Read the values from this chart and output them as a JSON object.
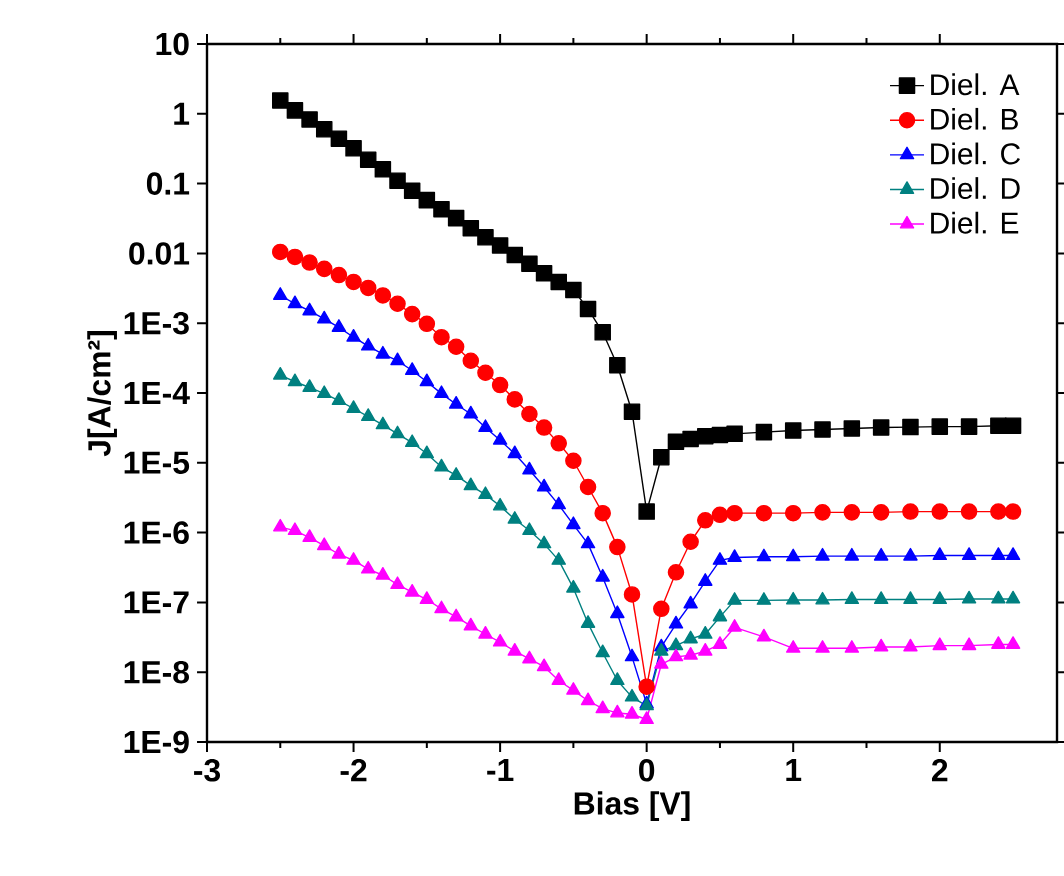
{
  "chart_data": {
    "type": "line",
    "xlabel": "Bias [V]",
    "ylabel": "J[A/cm²]",
    "x": [
      -2.5,
      -2.4,
      -2.3,
      -2.2,
      -2.1,
      -2.0,
      -1.9,
      -1.8,
      -1.7,
      -1.6,
      -1.5,
      -1.4,
      -1.3,
      -1.2,
      -1.1,
      -1.0,
      -0.9,
      -0.8,
      -0.7,
      -0.6,
      -0.5,
      -0.4,
      -0.3,
      -0.2,
      -0.1,
      0,
      0.1,
      0.2,
      0.3,
      0.4,
      0.5,
      0.6,
      0.8,
      1.0,
      1.2,
      1.4,
      1.6,
      1.8,
      2.0,
      2.2,
      2.4,
      2.5
    ],
    "series": [
      {
        "name": "Diel. A",
        "color": "#000000",
        "marker": "square",
        "values": [
          1.55,
          1.12,
          0.83,
          0.6,
          0.44,
          0.32,
          0.22,
          0.16,
          0.11,
          0.079,
          0.058,
          0.043,
          0.032,
          0.023,
          0.017,
          0.013,
          0.0095,
          0.0071,
          0.0052,
          0.0039,
          0.003,
          0.0016,
          0.00074,
          0.00025,
          5.4e-05,
          2e-06,
          1.2e-05,
          2e-05,
          2.2e-05,
          2.4e-05,
          2.5e-05,
          2.6e-05,
          2.75e-05,
          2.9e-05,
          3e-05,
          3.1e-05,
          3.2e-05,
          3.25e-05,
          3.3e-05,
          3.3e-05,
          3.4e-05,
          3.4e-05
        ]
      },
      {
        "name": "Diel. B",
        "color": "#ff0000",
        "marker": "circle",
        "values": [
          0.0105,
          0.0089,
          0.0074,
          0.006,
          0.0049,
          0.0039,
          0.0032,
          0.0025,
          0.0019,
          0.00135,
          0.00098,
          0.00063,
          0.00046,
          0.00029,
          0.000195,
          0.00013,
          8.1e-05,
          5e-05,
          3.2e-05,
          1.9e-05,
          1.07e-05,
          4.5e-06,
          1.9e-06,
          6.2e-07,
          1.3e-07,
          6.2e-09,
          8.1e-08,
          2.7e-07,
          7.4e-07,
          1.5e-06,
          1.8e-06,
          1.9e-06,
          1.9e-06,
          1.9e-06,
          1.95e-06,
          1.95e-06,
          1.95e-06,
          2e-06,
          2e-06,
          2e-06,
          2e-06,
          2e-06
        ]
      },
      {
        "name": "Diel. C",
        "color": "#0000ff",
        "marker": "triangle",
        "values": [
          0.0025,
          0.0019,
          0.0015,
          0.00115,
          0.00087,
          0.00063,
          0.00047,
          0.00036,
          0.00029,
          0.00021,
          0.000145,
          9.8e-05,
          6.9e-05,
          5e-05,
          3.2e-05,
          2.1e-05,
          1.35e-05,
          7.9e-06,
          4.5e-06,
          2.5e-06,
          1.3e-06,
          6.9e-07,
          2.3e-07,
          6.9e-08,
          1.66e-08,
          3.5e-09,
          2.3e-08,
          4.9e-08,
          9.5e-08,
          2e-07,
          4e-07,
          4.4e-07,
          4.5e-07,
          4.5e-07,
          4.6e-07,
          4.6e-07,
          4.6e-07,
          4.6e-07,
          4.7e-07,
          4.7e-07,
          4.7e-07,
          4.7e-07
        ]
      },
      {
        "name": "Diel. D",
        "color": "#008080",
        "marker": "triangle",
        "values": [
          0.00018,
          0.000145,
          0.00012,
          9.8e-05,
          7.8e-05,
          6e-05,
          4.6e-05,
          3.5e-05,
          2.6e-05,
          1.95e-05,
          1.35e-05,
          8.7e-06,
          6.6e-06,
          4.7e-06,
          3.5e-06,
          2.4e-06,
          1.55e-06,
          1.07e-06,
          6.9e-07,
          4e-07,
          1.6e-07,
          5e-08,
          1.9e-08,
          7.6e-09,
          4.4e-09,
          3.3e-09,
          2e-08,
          2.4e-08,
          3e-08,
          3.5e-08,
          6.2e-08,
          1.07e-07,
          1.07e-07,
          1.08e-07,
          1.08e-07,
          1.1e-07,
          1.1e-07,
          1.1e-07,
          1.1e-07,
          1.12e-07,
          1.12e-07,
          1.12e-07
        ]
      },
      {
        "name": "Diel. E",
        "color": "#ff00ff",
        "marker": "triangle",
        "values": [
          1.2e-06,
          1.07e-06,
          8.5e-07,
          6.5e-07,
          4.9e-07,
          4e-07,
          3e-07,
          2.45e-07,
          1.8e-07,
          1.4e-07,
          1.1e-07,
          8.1e-08,
          6.2e-08,
          4.6e-08,
          3.5e-08,
          2.7e-08,
          2e-08,
          1.55e-08,
          1.2e-08,
          7.6e-09,
          5.5e-09,
          3.9e-09,
          3e-09,
          2.6e-09,
          2.5e-09,
          2.1e-09,
          1.3e-08,
          1.66e-08,
          1.75e-08,
          2e-08,
          2.5e-08,
          4.4e-08,
          3.2e-08,
          2.2e-08,
          2.2e-08,
          2.2e-08,
          2.3e-08,
          2.3e-08,
          2.4e-08,
          2.4e-08,
          2.5e-08,
          2.5e-08
        ]
      }
    ],
    "xlim": [
      -3,
      2.8
    ],
    "xticks": [
      -3,
      -2,
      -1,
      0,
      1,
      2
    ],
    "ylim": [
      1e-09,
      10
    ],
    "yticks": [
      10,
      1,
      0.1,
      0.01,
      {
        "value": 0.001,
        "label": "1E-3"
      },
      {
        "value": 0.0001,
        "label": "1E-4"
      },
      {
        "value": 1e-05,
        "label": "1E-5"
      },
      {
        "value": 1e-06,
        "label": "1E-6"
      },
      {
        "value": 1e-07,
        "label": "1E-7"
      },
      {
        "value": 1e-08,
        "label": "1E-8"
      },
      {
        "value": 1e-09,
        "label": "1E-9"
      }
    ],
    "log": "y",
    "legend": "top right",
    "line_style": "solid"
  }
}
